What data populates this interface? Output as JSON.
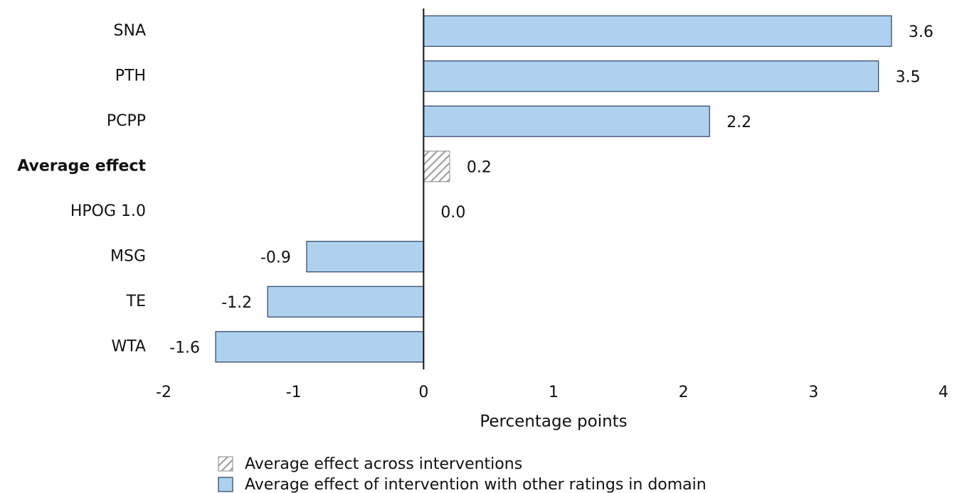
{
  "chart_data": {
    "type": "bar",
    "orientation": "horizontal",
    "x_label": "Percentage points",
    "categories": [
      "SNA",
      "PTH",
      "PCPP",
      "Average effect",
      "HPOG 1.0",
      "MSG",
      "TE",
      "WTA"
    ],
    "series": [
      {
        "name": "Average effect across interventions",
        "color": "#9a9a9a",
        "pattern": "hatch",
        "values": [
          null,
          null,
          null,
          0.2,
          null,
          null,
          null,
          null
        ],
        "value_labels": [
          null,
          null,
          null,
          "0.2",
          null,
          null,
          null,
          null
        ]
      },
      {
        "name": "Average effect of intervention with other ratings in domain",
        "color": "#aed1ef",
        "edge_color": "#2b4163",
        "values": [
          3.6,
          3.5,
          2.2,
          null,
          0.0,
          -0.9,
          -1.2,
          -1.6
        ],
        "value_labels": [
          "3.6",
          "3.5",
          "2.2",
          null,
          "0.0",
          "-0.9",
          "-1.2",
          "-1.6"
        ]
      }
    ],
    "xlim": [
      -2,
      4
    ],
    "xticks": [
      -2,
      -1,
      0,
      1,
      2,
      3,
      4
    ],
    "grid": false
  }
}
